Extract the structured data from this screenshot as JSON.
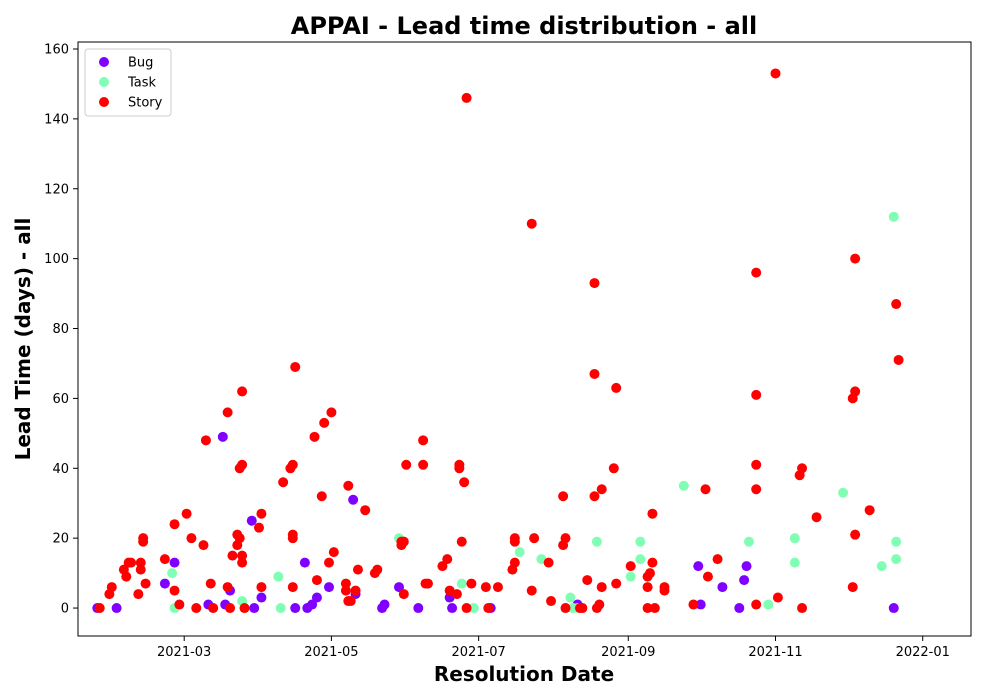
{
  "chart_data": {
    "type": "scatter",
    "title": "APPAI - Lead time distribution - all",
    "xlabel": "Resolution Date",
    "ylabel": "Lead Time (days) - all",
    "xlim": [
      "2021-01-16",
      "2022-01-21"
    ],
    "ylim": [
      -8,
      162
    ],
    "x_ticks": [
      "2021-03",
      "2021-05",
      "2021-07",
      "2021-09",
      "2021-11",
      "2022-01"
    ],
    "y_ticks": [
      0,
      20,
      40,
      60,
      80,
      100,
      120,
      140,
      160
    ],
    "grid": false,
    "legend": "top-left",
    "series": [
      {
        "name": "Bug",
        "color": "#8000ff",
        "points": [
          [
            "2021-01-24",
            0
          ],
          [
            "2021-02-01",
            0
          ],
          [
            "2021-02-21",
            7
          ],
          [
            "2021-02-25",
            13
          ],
          [
            "2021-03-11",
            1
          ],
          [
            "2021-03-17",
            49
          ],
          [
            "2021-03-18",
            1
          ],
          [
            "2021-03-20",
            5
          ],
          [
            "2021-03-29",
            25
          ],
          [
            "2021-03-30",
            0
          ],
          [
            "2021-04-02",
            3
          ],
          [
            "2021-04-16",
            0
          ],
          [
            "2021-04-20",
            13
          ],
          [
            "2021-04-21",
            0
          ],
          [
            "2021-04-23",
            1
          ],
          [
            "2021-04-25",
            3
          ],
          [
            "2021-04-30",
            6
          ],
          [
            "2021-05-10",
            31
          ],
          [
            "2021-05-11",
            4
          ],
          [
            "2021-05-22",
            0
          ],
          [
            "2021-05-23",
            1
          ],
          [
            "2021-05-29",
            6
          ],
          [
            "2021-06-06",
            0
          ],
          [
            "2021-06-19",
            3
          ],
          [
            "2021-06-20",
            0
          ],
          [
            "2021-07-06",
            0
          ],
          [
            "2021-08-11",
            1
          ],
          [
            "2021-09-30",
            12
          ],
          [
            "2021-10-01",
            1
          ],
          [
            "2021-10-10",
            6
          ],
          [
            "2021-10-17",
            0
          ],
          [
            "2021-10-19",
            8
          ],
          [
            "2021-10-20",
            12
          ],
          [
            "2021-12-20",
            0
          ]
        ]
      },
      {
        "name": "Task",
        "color": "#80ffb4",
        "points": [
          [
            "2021-02-24",
            10
          ],
          [
            "2021-02-25",
            0
          ],
          [
            "2021-03-25",
            2
          ],
          [
            "2021-03-26",
            0
          ],
          [
            "2021-04-09",
            9
          ],
          [
            "2021-04-10",
            0
          ],
          [
            "2021-05-29",
            20
          ],
          [
            "2021-06-24",
            7
          ],
          [
            "2021-06-29",
            0
          ],
          [
            "2021-07-18",
            16
          ],
          [
            "2021-07-27",
            14
          ],
          [
            "2021-08-06",
            0
          ],
          [
            "2021-08-08",
            3
          ],
          [
            "2021-08-09",
            0
          ],
          [
            "2021-08-11",
            0
          ],
          [
            "2021-08-19",
            19
          ],
          [
            "2021-09-02",
            9
          ],
          [
            "2021-09-06",
            19
          ],
          [
            "2021-09-06",
            14
          ],
          [
            "2021-09-24",
            35
          ],
          [
            "2021-10-21",
            19
          ],
          [
            "2021-10-29",
            1
          ],
          [
            "2021-11-09",
            20
          ],
          [
            "2021-11-09",
            13
          ],
          [
            "2021-11-29",
            33
          ],
          [
            "2021-12-15",
            12
          ],
          [
            "2021-12-20",
            112
          ],
          [
            "2021-12-21",
            19
          ],
          [
            "2021-12-21",
            14
          ]
        ]
      },
      {
        "name": "Story",
        "color": "#ff0000",
        "points": [
          [
            "2021-01-25",
            0
          ],
          [
            "2021-01-29",
            4
          ],
          [
            "2021-01-30",
            6
          ],
          [
            "2021-02-04",
            11
          ],
          [
            "2021-02-05",
            9
          ],
          [
            "2021-02-06",
            13
          ],
          [
            "2021-02-07",
            13
          ],
          [
            "2021-02-10",
            4
          ],
          [
            "2021-02-11",
            11
          ],
          [
            "2021-02-11",
            13
          ],
          [
            "2021-02-12",
            19
          ],
          [
            "2021-02-12",
            20
          ],
          [
            "2021-02-13",
            7
          ],
          [
            "2021-02-21",
            14
          ],
          [
            "2021-02-25",
            5
          ],
          [
            "2021-02-25",
            24
          ],
          [
            "2021-02-27",
            1
          ],
          [
            "2021-03-02",
            27
          ],
          [
            "2021-03-04",
            20
          ],
          [
            "2021-03-06",
            0
          ],
          [
            "2021-03-09",
            18
          ],
          [
            "2021-03-10",
            48
          ],
          [
            "2021-03-12",
            7
          ],
          [
            "2021-03-13",
            0
          ],
          [
            "2021-03-19",
            56
          ],
          [
            "2021-03-19",
            6
          ],
          [
            "2021-03-20",
            0
          ],
          [
            "2021-03-21",
            15
          ],
          [
            "2021-03-23",
            18
          ],
          [
            "2021-03-23",
            21
          ],
          [
            "2021-03-24",
            40
          ],
          [
            "2021-03-24",
            20
          ],
          [
            "2021-03-25",
            62
          ],
          [
            "2021-03-25",
            41
          ],
          [
            "2021-03-25",
            15
          ],
          [
            "2021-03-25",
            13
          ],
          [
            "2021-03-26",
            0
          ],
          [
            "2021-04-01",
            23
          ],
          [
            "2021-04-02",
            27
          ],
          [
            "2021-04-02",
            6
          ],
          [
            "2021-04-11",
            36
          ],
          [
            "2021-04-14",
            40
          ],
          [
            "2021-04-15",
            41
          ],
          [
            "2021-04-15",
            21
          ],
          [
            "2021-04-15",
            20
          ],
          [
            "2021-04-15",
            6
          ],
          [
            "2021-04-16",
            69
          ],
          [
            "2021-04-24",
            49
          ],
          [
            "2021-04-25",
            8
          ],
          [
            "2021-04-27",
            32
          ],
          [
            "2021-04-28",
            53
          ],
          [
            "2021-04-30",
            13
          ],
          [
            "2021-05-01",
            56
          ],
          [
            "2021-05-02",
            16
          ],
          [
            "2021-05-07",
            7
          ],
          [
            "2021-05-07",
            5
          ],
          [
            "2021-05-08",
            35
          ],
          [
            "2021-05-08",
            2
          ],
          [
            "2021-05-09",
            2
          ],
          [
            "2021-05-11",
            5
          ],
          [
            "2021-05-12",
            11
          ],
          [
            "2021-05-15",
            28
          ],
          [
            "2021-05-19",
            10
          ],
          [
            "2021-05-20",
            11
          ],
          [
            "2021-05-30",
            19
          ],
          [
            "2021-05-30",
            18
          ],
          [
            "2021-05-31",
            19
          ],
          [
            "2021-05-31",
            4
          ],
          [
            "2021-06-01",
            41
          ],
          [
            "2021-06-08",
            48
          ],
          [
            "2021-06-08",
            41
          ],
          [
            "2021-06-09",
            7
          ],
          [
            "2021-06-10",
            7
          ],
          [
            "2021-06-16",
            12
          ],
          [
            "2021-06-18",
            14
          ],
          [
            "2021-06-19",
            5
          ],
          [
            "2021-06-22",
            4
          ],
          [
            "2021-06-23",
            40
          ],
          [
            "2021-06-23",
            41
          ],
          [
            "2021-06-24",
            19
          ],
          [
            "2021-06-25",
            36
          ],
          [
            "2021-06-26",
            146
          ],
          [
            "2021-06-26",
            0
          ],
          [
            "2021-06-28",
            7
          ],
          [
            "2021-07-04",
            6
          ],
          [
            "2021-07-05",
            0
          ],
          [
            "2021-07-09",
            6
          ],
          [
            "2021-07-15",
            11
          ],
          [
            "2021-07-16",
            20
          ],
          [
            "2021-07-16",
            19
          ],
          [
            "2021-07-16",
            13
          ],
          [
            "2021-07-23",
            110
          ],
          [
            "2021-07-23",
            5
          ],
          [
            "2021-07-24",
            20
          ],
          [
            "2021-07-30",
            13
          ],
          [
            "2021-07-31",
            2
          ],
          [
            "2021-08-05",
            18
          ],
          [
            "2021-08-05",
            32
          ],
          [
            "2021-08-06",
            20
          ],
          [
            "2021-08-06",
            0
          ],
          [
            "2021-08-12",
            0
          ],
          [
            "2021-08-13",
            0
          ],
          [
            "2021-08-15",
            8
          ],
          [
            "2021-08-18",
            93
          ],
          [
            "2021-08-18",
            67
          ],
          [
            "2021-08-18",
            32
          ],
          [
            "2021-08-19",
            0
          ],
          [
            "2021-08-20",
            1
          ],
          [
            "2021-08-21",
            34
          ],
          [
            "2021-08-21",
            6
          ],
          [
            "2021-08-26",
            40
          ],
          [
            "2021-08-27",
            63
          ],
          [
            "2021-08-27",
            7
          ],
          [
            "2021-09-02",
            12
          ],
          [
            "2021-09-09",
            9
          ],
          [
            "2021-09-09",
            6
          ],
          [
            "2021-09-09",
            0
          ],
          [
            "2021-09-10",
            10
          ],
          [
            "2021-09-11",
            27
          ],
          [
            "2021-09-11",
            13
          ],
          [
            "2021-09-12",
            0
          ],
          [
            "2021-09-16",
            6
          ],
          [
            "2021-09-16",
            5
          ],
          [
            "2021-09-28",
            1
          ],
          [
            "2021-10-03",
            34
          ],
          [
            "2021-10-04",
            9
          ],
          [
            "2021-10-08",
            14
          ],
          [
            "2021-10-24",
            96
          ],
          [
            "2021-10-24",
            61
          ],
          [
            "2021-10-24",
            41
          ],
          [
            "2021-10-24",
            34
          ],
          [
            "2021-10-24",
            1
          ],
          [
            "2021-11-01",
            153
          ],
          [
            "2021-11-02",
            3
          ],
          [
            "2021-11-11",
            38
          ],
          [
            "2021-11-12",
            40
          ],
          [
            "2021-11-12",
            0
          ],
          [
            "2021-11-18",
            26
          ],
          [
            "2021-12-03",
            60
          ],
          [
            "2021-12-03",
            6
          ],
          [
            "2021-12-04",
            100
          ],
          [
            "2021-12-04",
            62
          ],
          [
            "2021-12-04",
            21
          ],
          [
            "2021-12-10",
            28
          ],
          [
            "2021-12-21",
            87
          ],
          [
            "2021-12-22",
            71
          ]
        ]
      }
    ]
  }
}
